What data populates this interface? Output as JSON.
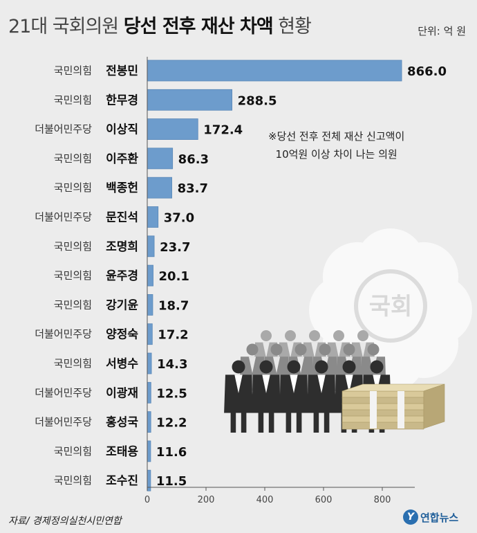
{
  "title": {
    "light_prefix": "21대 국회의원",
    "bold": "당선 전후 재산 차액",
    "light_suffix": "현황"
  },
  "unit": "단위: 억 원",
  "note": {
    "line1": "※당선 전후 전체 재산 신고액이",
    "line2": "10억원 이상 차이 나는 의원"
  },
  "source": "자료/ 경제정의실천시민연합",
  "logo": {
    "mark": "Y",
    "text": "연합뉴스"
  },
  "illustration": {
    "seal_text": "국회"
  },
  "colors": {
    "bar": "#6d9ccc",
    "bar_stroke": "#5a88b8",
    "background": "#ececec"
  },
  "chart_data": {
    "type": "bar",
    "orientation": "horizontal",
    "categories": [
      {
        "party": "국민의힘",
        "name": "전봉민"
      },
      {
        "party": "국민의힘",
        "name": "한무경"
      },
      {
        "party": "더불어민주당",
        "name": "이상직"
      },
      {
        "party": "국민의힘",
        "name": "이주환"
      },
      {
        "party": "국민의힘",
        "name": "백종헌"
      },
      {
        "party": "더불어민주당",
        "name": "문진석"
      },
      {
        "party": "국민의힘",
        "name": "조명희"
      },
      {
        "party": "국민의힘",
        "name": "윤주경"
      },
      {
        "party": "국민의힘",
        "name": "강기윤"
      },
      {
        "party": "더불어민주당",
        "name": "양정숙"
      },
      {
        "party": "국민의힘",
        "name": "서병수"
      },
      {
        "party": "더불어민주당",
        "name": "이광재"
      },
      {
        "party": "더불어민주당",
        "name": "홍성국"
      },
      {
        "party": "국민의힘",
        "name": "조태용"
      },
      {
        "party": "국민의힘",
        "name": "조수진"
      }
    ],
    "values": [
      866.0,
      288.5,
      172.4,
      86.3,
      83.7,
      37.0,
      23.7,
      20.1,
      18.7,
      17.2,
      14.3,
      12.5,
      12.2,
      11.6,
      11.5
    ],
    "value_labels": [
      "866.0",
      "288.5",
      "172.4",
      "86.3",
      "83.7",
      "37.0",
      "23.7",
      "20.1",
      "18.7",
      "17.2",
      "14.3",
      "12.5",
      "12.2",
      "11.6",
      "11.5"
    ],
    "xticks": [
      0,
      200,
      400,
      600,
      800
    ],
    "xlim": [
      0,
      900
    ],
    "unit": "억 원",
    "grid": false
  }
}
